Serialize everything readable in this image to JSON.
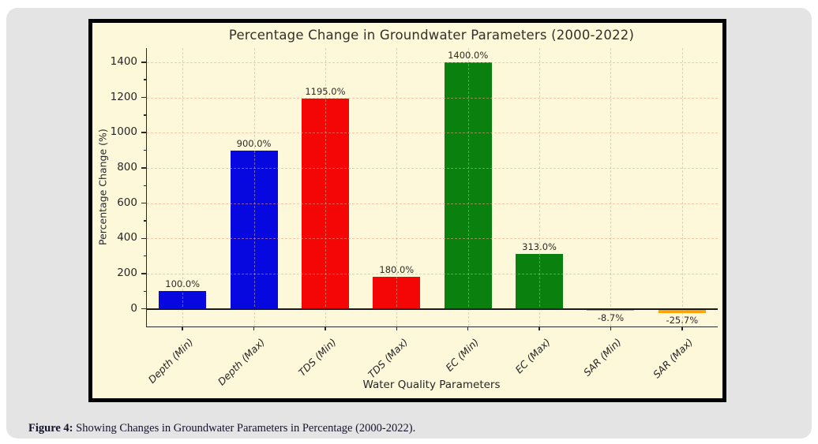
{
  "page": {
    "caption": {
      "prefix": "Figure 4:",
      "text": " Showing Changes in Groundwater Parameters in Percentage (2000-2022)."
    }
  },
  "chart_data": {
    "type": "bar",
    "title": "Percentage Change in Groundwater Parameters (2000-2022)",
    "xlabel": "Water Quality Parameters",
    "ylabel": "Percentage Change (%)",
    "categories": [
      "Depth (Min)",
      "Depth (Max)",
      "TDS (Min)",
      "TDS (Max)",
      "EC (Min)",
      "EC (Max)",
      "SAR (Min)",
      "SAR (Max)"
    ],
    "values": [
      100.0,
      900.0,
      1195.0,
      180.0,
      1400.0,
      313.0,
      -8.7,
      -25.7
    ],
    "value_labels": [
      "100.0%",
      "900.0%",
      "1195.0%",
      "180.0%",
      "1400.0%",
      "313.0%",
      "-8.7%",
      "-25.7%"
    ],
    "bar_colors": [
      "#0707e0",
      "#0707e0",
      "#f40606",
      "#f40606",
      "#0a800f",
      "#0a800f",
      "#ffa405",
      "#ffa405"
    ],
    "yticks": [
      0,
      200,
      400,
      600,
      800,
      1000,
      1200,
      1400
    ],
    "yticks_minor": [
      100,
      300,
      500,
      700,
      900,
      1100,
      1300
    ],
    "ylim": [
      -100,
      1480
    ],
    "grid": "dashed horizontal and vertical",
    "legend_position": "none",
    "colors": {
      "panel_bg": "#fdf8da",
      "panel_border": "#000000",
      "card_bg": "#e4e4e4",
      "axis": "#2a2a2a",
      "text": "#262626"
    }
  }
}
